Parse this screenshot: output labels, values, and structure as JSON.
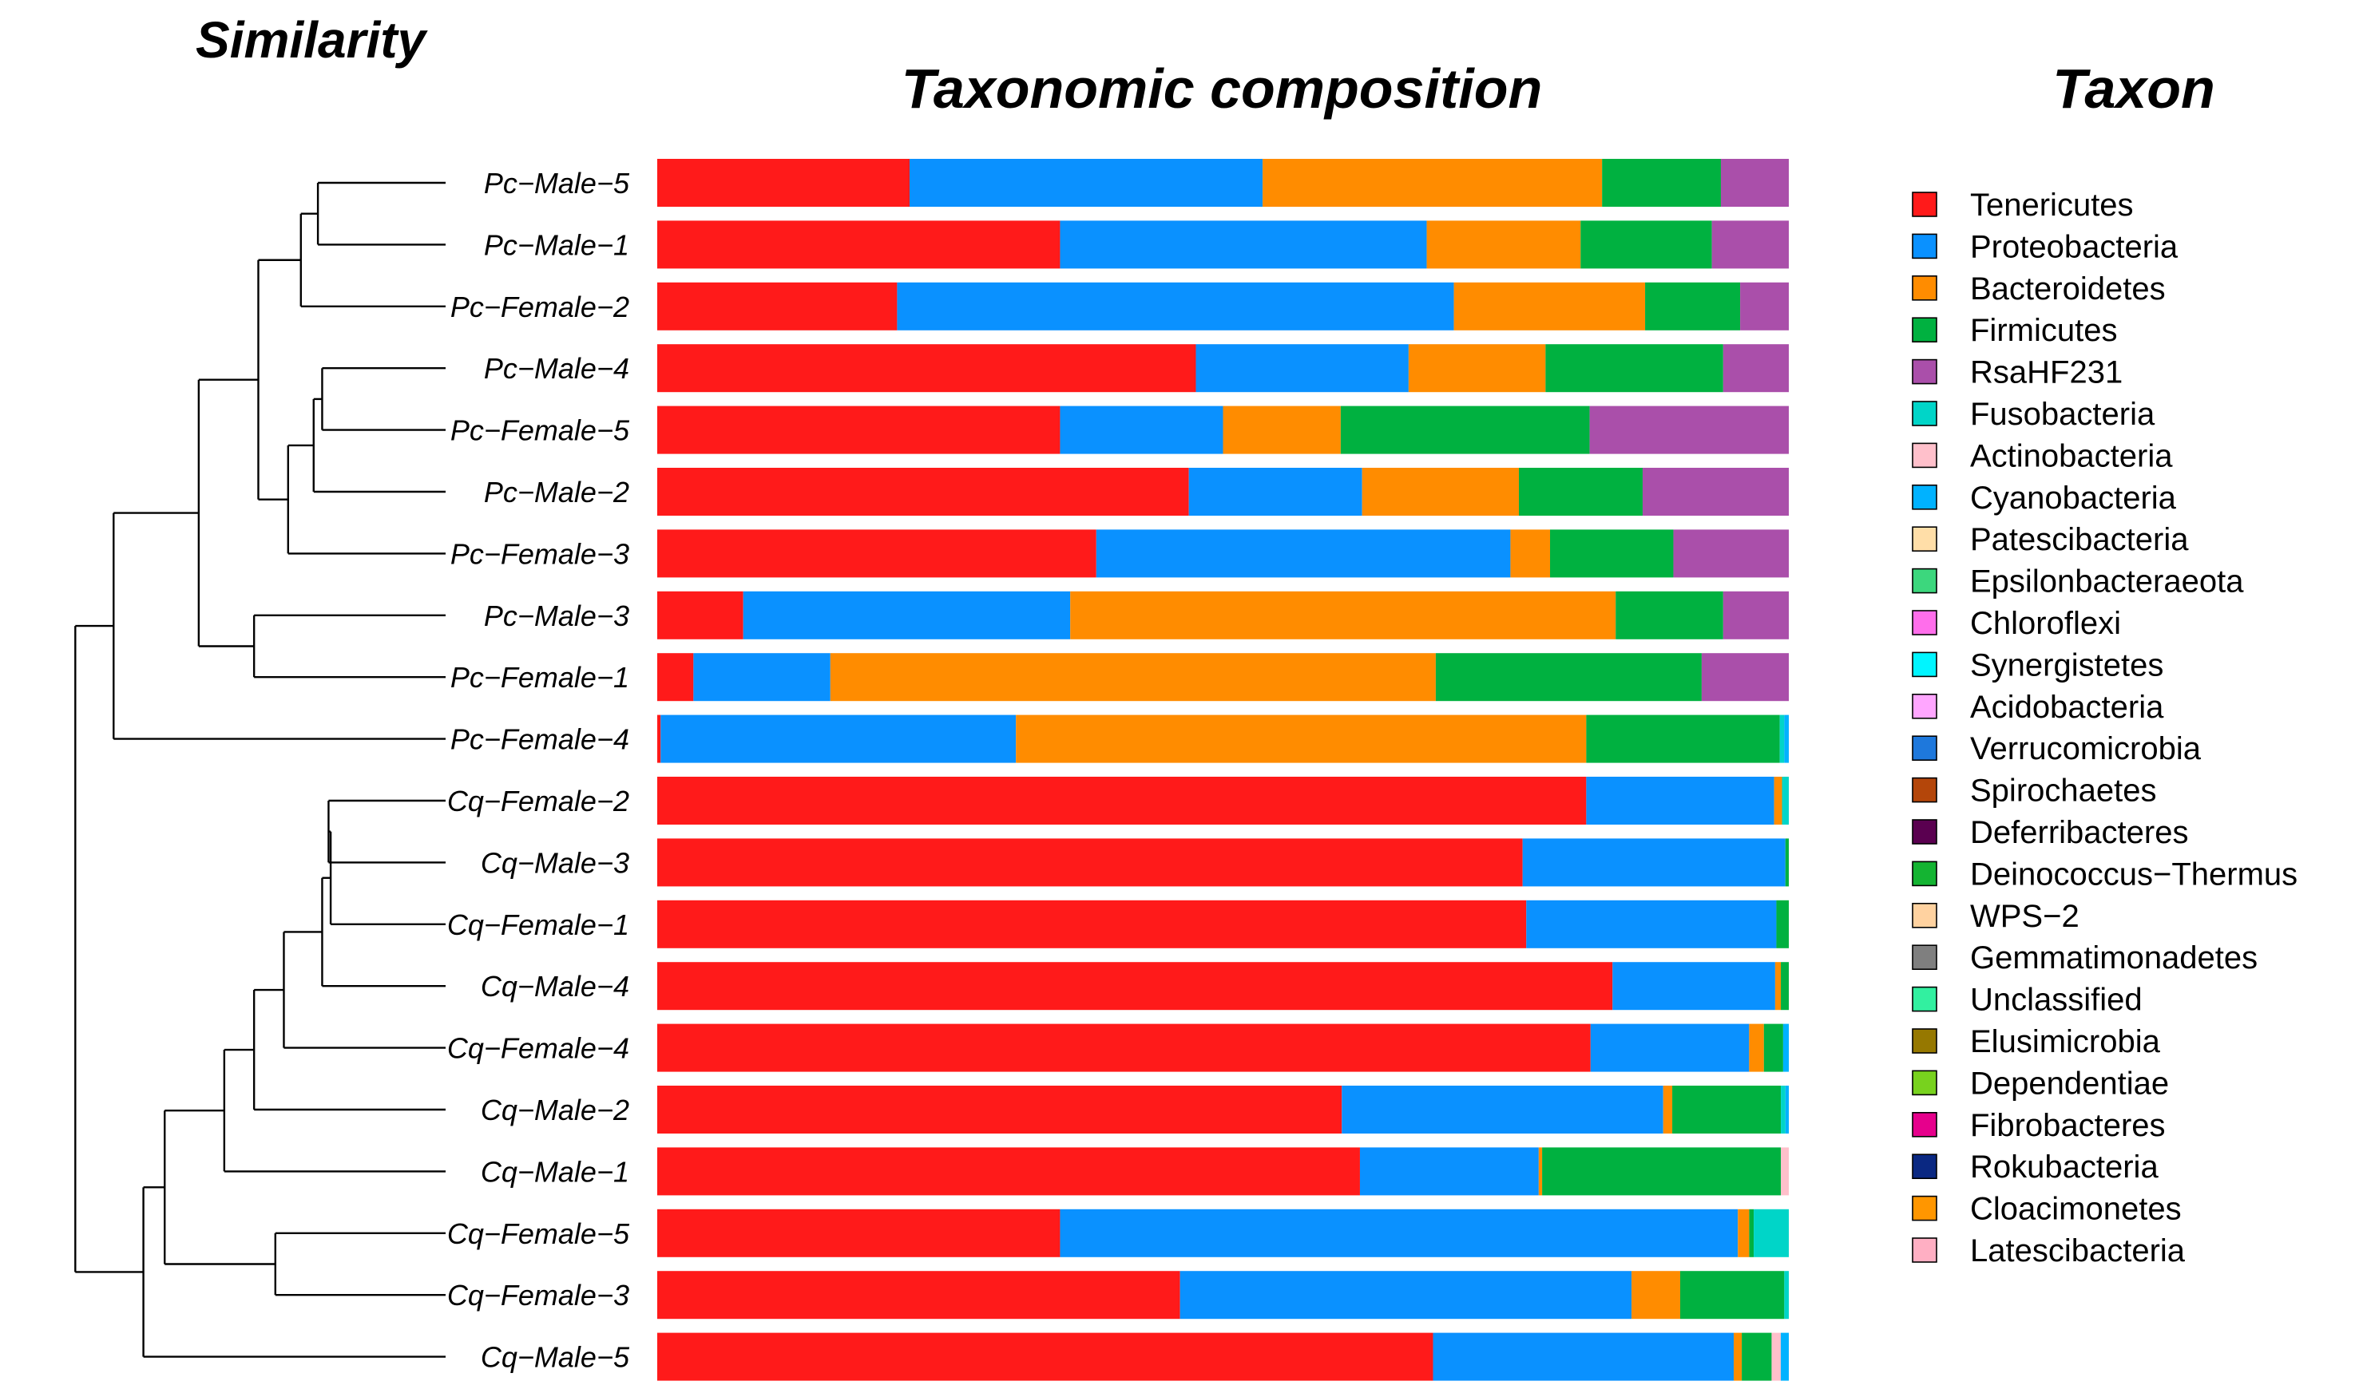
{
  "chart_data": {
    "type": "bar",
    "orientation": "horizontal-stacked-normalized",
    "title": "Taxonomic composition",
    "dendrogram_title": "Similarity",
    "legend_title": "Taxon",
    "categories": [
      "Pc−Male−5",
      "Pc−Male−1",
      "Pc−Female−2",
      "Pc−Male−4",
      "Pc−Female−5",
      "Pc−Male−2",
      "Pc−Female−3",
      "Pc−Male−3",
      "Pc−Female−1",
      "Pc−Female−4",
      "Cq−Female−2",
      "Cq−Male−3",
      "Cq−Female−1",
      "Cq−Male−4",
      "Cq−Female−4",
      "Cq−Male−2",
      "Cq−Male−1",
      "Cq−Female−5",
      "Cq−Female−3",
      "Cq−Male−5"
    ],
    "series": [
      {
        "name": "Tenericutes",
        "color": "#FF1A1A",
        "values": [
          22.3,
          35.6,
          21.2,
          47.6,
          35.6,
          45.1,
          38.8,
          7.6,
          3.2,
          0.3,
          82.1,
          76.4,
          76.8,
          84.0,
          82.4,
          60.5,
          62.1,
          35.6,
          46.2,
          67.6
        ]
      },
      {
        "name": "Proteobacteria",
        "color": "#0A91FF",
        "values": [
          31.2,
          32.4,
          49.2,
          18.8,
          14.4,
          14.7,
          36.6,
          28.9,
          12.1,
          31.4,
          16.6,
          23.2,
          22.1,
          14.3,
          14.0,
          28.4,
          15.8,
          59.9,
          39.9,
          26.2
        ]
      },
      {
        "name": "Bacteroidetes",
        "color": "#FF8C00",
        "values": [
          30.0,
          13.6,
          16.9,
          12.1,
          10.4,
          13.3,
          3.5,
          48.2,
          53.5,
          50.4,
          0.7,
          0,
          0,
          0.5,
          1.3,
          0.8,
          0.3,
          1.0,
          4.3,
          0.7
        ]
      },
      {
        "name": "Firmicutes",
        "color": "#00B140",
        "values": [
          10.5,
          11.6,
          8.4,
          15.7,
          22.0,
          10.5,
          10.9,
          9.5,
          23.5,
          17.1,
          0,
          0.3,
          1.1,
          0.7,
          1.7,
          9.6,
          21.1,
          0.4,
          9.2,
          2.6
        ]
      },
      {
        "name": "RsaHF231",
        "color": "#AA4FAA",
        "values": [
          6.0,
          6.8,
          4.3,
          5.8,
          17.6,
          12.4,
          10.2,
          5.8,
          7.7,
          0,
          0,
          0,
          0,
          0,
          0,
          0,
          0,
          0,
          0,
          0
        ]
      },
      {
        "name": "Fusobacteria",
        "color": "#00D5C8",
        "values": [
          0,
          0,
          0,
          0,
          0,
          0,
          0,
          0,
          0,
          0.4,
          0.6,
          0,
          0,
          0,
          0,
          0.4,
          0,
          3.1,
          0.4,
          0
        ]
      },
      {
        "name": "Actinobacteria",
        "color": "#FFC0CB",
        "values": [
          0,
          0,
          0,
          0,
          0,
          0,
          0,
          0,
          0,
          0,
          0,
          0,
          0,
          0,
          0,
          0,
          0.7,
          0,
          0,
          0.8
        ]
      },
      {
        "name": "Cyanobacteria",
        "color": "#00B2FF",
        "values": [
          0,
          0,
          0,
          0,
          0,
          0,
          0,
          0,
          0,
          0.4,
          0,
          0,
          0,
          0,
          0.5,
          0.3,
          0,
          0,
          0,
          0.7
        ]
      },
      {
        "name": "Patescibacteria",
        "color": "#FFDEA8",
        "values": [
          0,
          0,
          0,
          0,
          0,
          0,
          0,
          0,
          0,
          0,
          0,
          0,
          0,
          0,
          0,
          0,
          0,
          0,
          0,
          0
        ]
      },
      {
        "name": "Epsilonbacteraeota",
        "color": "#3CD77D",
        "values": [
          0,
          0,
          0,
          0,
          0,
          0,
          0,
          0,
          0,
          0,
          0,
          0,
          0,
          0,
          0,
          0,
          0,
          0,
          0,
          0
        ]
      },
      {
        "name": "Chloroflexi",
        "color": "#FF6EEB",
        "values": [
          0,
          0,
          0,
          0,
          0,
          0,
          0,
          0,
          0,
          0,
          0,
          0,
          0,
          0,
          0,
          0,
          0,
          0,
          0,
          0
        ]
      },
      {
        "name": "Synergistetes",
        "color": "#00F5FF",
        "values": [
          0,
          0,
          0,
          0,
          0,
          0,
          0,
          0,
          0,
          0,
          0,
          0,
          0,
          0,
          0,
          0,
          0,
          0,
          0,
          0
        ]
      },
      {
        "name": "Acidobacteria",
        "color": "#FFA6FF",
        "values": [
          0,
          0,
          0,
          0,
          0,
          0,
          0,
          0,
          0,
          0,
          0,
          0,
          0,
          0,
          0,
          0,
          0,
          0,
          0,
          0
        ]
      },
      {
        "name": "Verrucomicrobia",
        "color": "#1E78DC",
        "values": [
          0,
          0,
          0,
          0,
          0,
          0,
          0,
          0,
          0,
          0,
          0,
          0,
          0,
          0,
          0,
          0,
          0,
          0,
          0,
          0
        ]
      },
      {
        "name": "Spirochaetes",
        "color": "#B4460A",
        "values": [
          0,
          0,
          0,
          0,
          0,
          0,
          0,
          0,
          0,
          0,
          0,
          0,
          0,
          0,
          0,
          0,
          0,
          0,
          0,
          0
        ]
      },
      {
        "name": "Deferribacteres",
        "color": "#5A0050",
        "values": [
          0,
          0,
          0,
          0,
          0,
          0,
          0,
          0,
          0,
          0,
          0,
          0,
          0,
          0,
          0,
          0,
          0,
          0,
          0,
          0
        ]
      },
      {
        "name": "Deinococcus−Thermus",
        "color": "#14B432",
        "values": [
          0,
          0,
          0,
          0,
          0,
          0,
          0,
          0,
          0,
          0,
          0,
          0,
          0,
          0,
          0,
          0,
          0,
          0,
          0,
          0
        ]
      },
      {
        "name": "WPS−2",
        "color": "#FFD2A0",
        "values": [
          0,
          0,
          0,
          0,
          0,
          0,
          0,
          0,
          0,
          0,
          0,
          0,
          0,
          0,
          0,
          0,
          0,
          0,
          0,
          0
        ]
      },
      {
        "name": "Gemmatimonadetes",
        "color": "#7F7F7F",
        "values": [
          0,
          0,
          0,
          0,
          0,
          0,
          0,
          0,
          0,
          0,
          0,
          0,
          0,
          0,
          0,
          0,
          0,
          0,
          0,
          0
        ]
      },
      {
        "name": "Unclassified",
        "color": "#32F0A0",
        "values": [
          0,
          0,
          0,
          0,
          0,
          0,
          0,
          0,
          0,
          0,
          0,
          0,
          0,
          0,
          0,
          0,
          0,
          0,
          0,
          0
        ]
      },
      {
        "name": "Elusimicrobia",
        "color": "#967800",
        "values": [
          0,
          0,
          0,
          0,
          0,
          0,
          0,
          0,
          0,
          0,
          0,
          0,
          0,
          0,
          0,
          0,
          0,
          0,
          0,
          0
        ]
      },
      {
        "name": "Dependentiae",
        "color": "#78D21E",
        "values": [
          0,
          0,
          0,
          0,
          0,
          0,
          0,
          0,
          0,
          0,
          0,
          0,
          0,
          0,
          0,
          0,
          0,
          0,
          0,
          0
        ]
      },
      {
        "name": "Fibrobacteres",
        "color": "#E6008C",
        "values": [
          0,
          0,
          0,
          0,
          0,
          0,
          0,
          0,
          0,
          0,
          0,
          0,
          0,
          0,
          0,
          0,
          0,
          0,
          0,
          0
        ]
      },
      {
        "name": "Rokubacteria",
        "color": "#0A2882",
        "values": [
          0,
          0,
          0,
          0,
          0,
          0,
          0,
          0,
          0,
          0,
          0,
          0,
          0,
          0,
          0,
          0,
          0,
          0,
          0,
          0
        ]
      },
      {
        "name": "Cloacimonetes",
        "color": "#FF9600",
        "values": [
          0,
          0,
          0,
          0,
          0,
          0,
          0,
          0,
          0,
          0,
          0,
          0,
          0,
          0,
          0,
          0,
          0,
          0,
          0,
          0
        ]
      },
      {
        "name": "Latescibacteria",
        "color": "#FFAFC3",
        "values": [
          0,
          0,
          0,
          0,
          0,
          0,
          0,
          0,
          0,
          0,
          0,
          0,
          0,
          0,
          0,
          0,
          0,
          0,
          0,
          0
        ]
      }
    ],
    "xlim": [
      0,
      100
    ],
    "grid": false,
    "legend_position": "right",
    "dendrogram": {
      "leaves": [
        "Pc−Male−5",
        "Pc−Male−1",
        "Pc−Female−2",
        "Pc−Male−4",
        "Pc−Female−5",
        "Pc−Male−2",
        "Pc−Female−3",
        "Pc−Male−3",
        "Pc−Female−1",
        "Pc−Female−4",
        "Cq−Female−2",
        "Cq−Male−3",
        "Cq−Female−1",
        "Cq−Male−4",
        "Cq−Female−4",
        "Cq−Male−2",
        "Cq−Male−1",
        "Cq−Female−5",
        "Cq−Female−3",
        "Cq−Male−5"
      ],
      "merges": [
        {
          "a": "L0",
          "b": "L1",
          "height": 0.3
        },
        {
          "a": "M0",
          "b": "L2",
          "height": 0.34
        },
        {
          "a": "L3",
          "b": "L4",
          "height": 0.29
        },
        {
          "a": "M2",
          "b": "L5",
          "height": 0.31
        },
        {
          "a": "M3",
          "b": "L6",
          "height": 0.37
        },
        {
          "a": "M1",
          "b": "M4",
          "height": 0.44
        },
        {
          "a": "L7",
          "b": "L8",
          "height": 0.45
        },
        {
          "a": "M5",
          "b": "M6",
          "height": 0.58
        },
        {
          "a": "M7",
          "b": "L9",
          "height": 0.78
        },
        {
          "a": "L10",
          "b": "L11",
          "height": 0.275
        },
        {
          "a": "M9",
          "b": "L12",
          "height": 0.27
        },
        {
          "a": "M10",
          "b": "L13",
          "height": 0.29
        },
        {
          "a": "M11",
          "b": "L14",
          "height": 0.38
        },
        {
          "a": "M12",
          "b": "L15",
          "height": 0.45
        },
        {
          "a": "M13",
          "b": "L16",
          "height": 0.52
        },
        {
          "a": "L17",
          "b": "L18",
          "height": 0.4
        },
        {
          "a": "M14",
          "b": "M15",
          "height": 0.66
        },
        {
          "a": "M16",
          "b": "L19",
          "height": 0.71
        },
        {
          "a": "M8",
          "b": "M17",
          "height": 0.87
        }
      ]
    }
  }
}
